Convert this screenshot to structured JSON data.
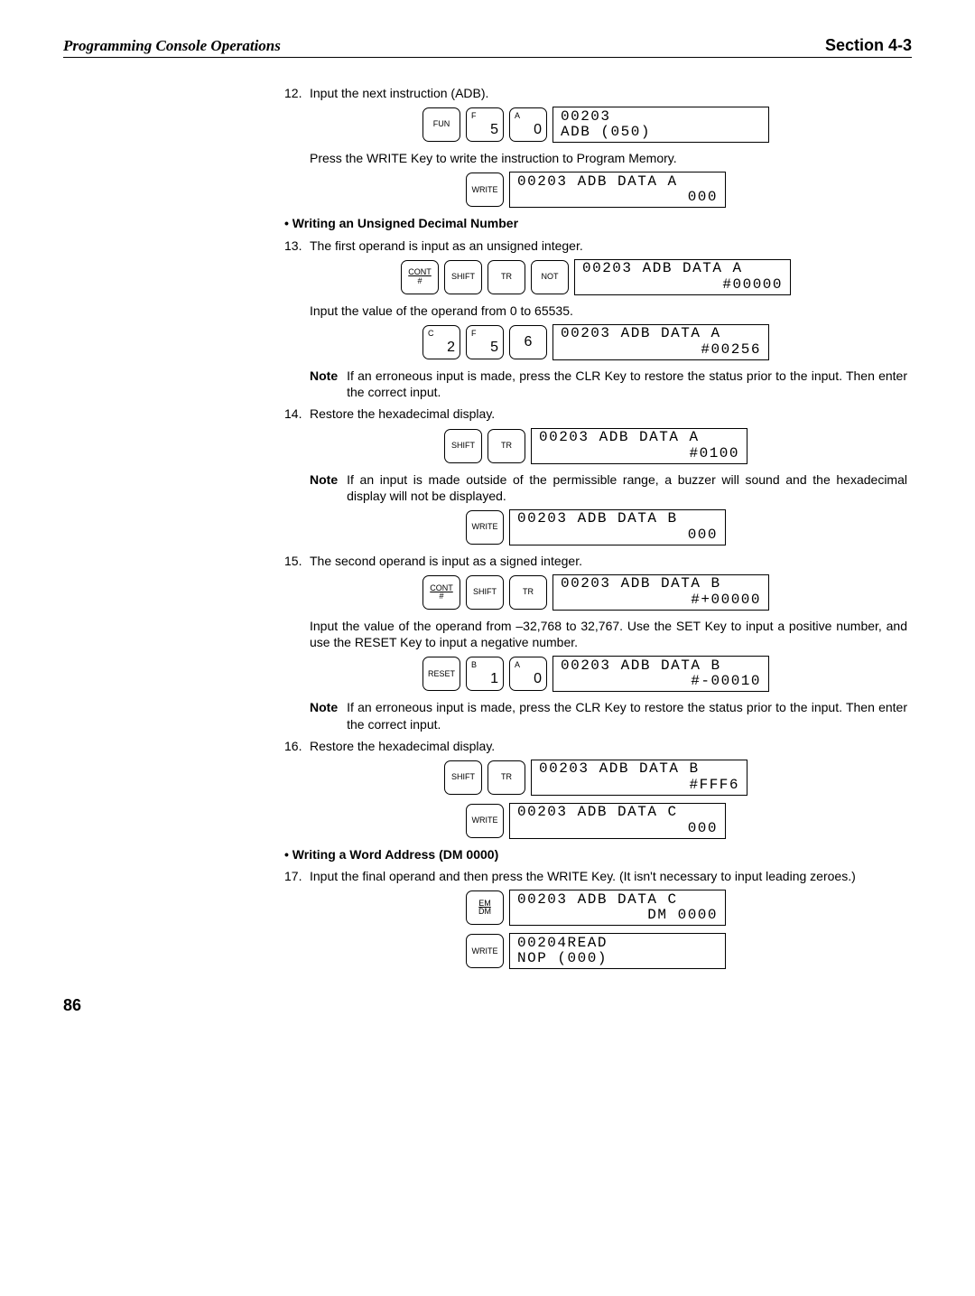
{
  "header": {
    "left": "Programming Console Operations",
    "right": "Section 4-3"
  },
  "step12": {
    "number": "12.",
    "text": "Input the next instruction (ADB).",
    "keys": [
      {
        "type": "single",
        "label": "FUN"
      },
      {
        "type": "dual",
        "letter": "F",
        "num": "5"
      },
      {
        "type": "dual",
        "letter": "A",
        "num": "0"
      }
    ],
    "display": {
      "line1": "00203",
      "line2": "ADB (050)",
      "leftAlign": true
    },
    "after": "Press the WRITE Key to write the instruction to Program Memory.",
    "keys2": [
      {
        "type": "single",
        "label": "WRITE"
      }
    ],
    "display2": {
      "line1": "00203 ADB DATA A",
      "line2": "000"
    }
  },
  "headingA": "• Writing an Unsigned Decimal Number",
  "step13": {
    "number": "13.",
    "text": "The first operand is input as an unsigned integer.",
    "keys": [
      {
        "type": "stack",
        "top": "CONT",
        "sub": "#",
        "topUnder": true
      },
      {
        "type": "single",
        "label": "SHIFT"
      },
      {
        "type": "single",
        "label": "TR"
      },
      {
        "type": "single",
        "label": "NOT"
      }
    ],
    "display": {
      "line1": "00203 ADB DATA A",
      "line2": "#00000"
    },
    "after": "Input the value of the operand from 0 to 65535.",
    "keys2": [
      {
        "type": "dual",
        "letter": "C",
        "num": "2"
      },
      {
        "type": "dual",
        "letter": "F",
        "num": "5"
      },
      {
        "type": "big",
        "label": "6"
      }
    ],
    "display2": {
      "line1": "00203 ADB DATA A",
      "line2": "#00256"
    },
    "note": "If an erroneous input is made, press the CLR Key to restore the status prior to the input. Then enter the correct input."
  },
  "step14": {
    "number": "14.",
    "text": "Restore the hexadecimal display.",
    "keys": [
      {
        "type": "single",
        "label": "SHIFT"
      },
      {
        "type": "single",
        "label": "TR"
      }
    ],
    "display": {
      "line1": "00203 ADB DATA A",
      "line2": "#0100"
    },
    "note": "If an input is made outside of the permissible range, a buzzer will sound and the hexadecimal display will not be displayed.",
    "keys2": [
      {
        "type": "single",
        "label": "WRITE"
      }
    ],
    "display2": {
      "line1": "00203 ADB DATA B",
      "line2": "000"
    }
  },
  "step15": {
    "number": "15.",
    "text": "The second operand is input as a signed integer.",
    "keys": [
      {
        "type": "stack",
        "top": "CONT",
        "sub": "#",
        "topUnder": true
      },
      {
        "type": "single",
        "label": "SHIFT"
      },
      {
        "type": "single",
        "label": "TR"
      }
    ],
    "display": {
      "line1": "00203 ADB DATA B",
      "line2": "#+00000"
    },
    "after": "Input the value of the operand from –32,768 to 32,767. Use the SET Key to input a positive number, and use the RESET Key to input a negative number.",
    "keys2": [
      {
        "type": "single",
        "label": "RESET"
      },
      {
        "type": "dual",
        "letter": "B",
        "num": "1"
      },
      {
        "type": "dual",
        "letter": "A",
        "num": "0"
      }
    ],
    "display2": {
      "line1": "00203 ADB DATA B",
      "line2": "#-00010"
    },
    "note": "If an erroneous input is made, press the CLR Key to restore the status prior to the input. Then enter the correct input."
  },
  "step16": {
    "number": "16.",
    "text": "Restore the hexadecimal display.",
    "keys": [
      {
        "type": "single",
        "label": "SHIFT"
      },
      {
        "type": "single",
        "label": "TR"
      }
    ],
    "display": {
      "line1": "00203 ADB DATA B",
      "line2": "#FFF6"
    },
    "keys2": [
      {
        "type": "single",
        "label": "WRITE"
      }
    ],
    "display2": {
      "line1": "00203 ADB DATA C",
      "line2": "000"
    }
  },
  "headingB": "• Writing a Word Address (DM 0000)",
  "step17": {
    "number": "17.",
    "text": "Input the final operand and then press the WRITE Key. (It isn't necessary to input leading zeroes.)",
    "keys": [
      {
        "type": "stack",
        "top": "EM",
        "sub": "DM",
        "topUnder": true
      }
    ],
    "display": {
      "line1": "00203 ADB DATA C",
      "line2": "DM 0000"
    },
    "keys2": [
      {
        "type": "single",
        "label": "WRITE"
      }
    ],
    "display2": {
      "line1": "00204READ",
      "line2": "NOP (000)",
      "leftAlign": true
    }
  },
  "pageNum": "86",
  "noteLabel": "Note"
}
